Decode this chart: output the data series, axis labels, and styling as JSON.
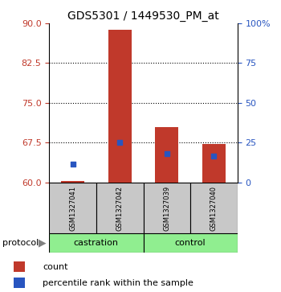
{
  "title": "GDS5301 / 1449530_PM_at",
  "samples": [
    "GSM1327041",
    "GSM1327042",
    "GSM1327039",
    "GSM1327040"
  ],
  "bar_values": [
    60.35,
    88.8,
    70.5,
    67.2
  ],
  "bar_bottom": 60,
  "percentile_values": [
    63.5,
    67.5,
    65.5,
    65.0
  ],
  "left_ylim": [
    60,
    90
  ],
  "right_ylim": [
    0,
    100
  ],
  "left_yticks": [
    60,
    67.5,
    75,
    82.5,
    90
  ],
  "right_yticks": [
    0,
    25,
    50,
    75,
    100
  ],
  "right_yticklabels": [
    "0",
    "25",
    "50",
    "75",
    "100%"
  ],
  "bar_color": "#c0392b",
  "point_color": "#2855c0",
  "protocol_groups": [
    {
      "label": "castration",
      "indices": [
        0,
        1
      ],
      "color": "#90ee90"
    },
    {
      "label": "control",
      "indices": [
        2,
        3
      ],
      "color": "#90ee90"
    }
  ],
  "protocol_label": "protocol",
  "sample_bg_color": "#c8c8c8",
  "legend_bar_label": "count",
  "legend_point_label": "percentile rank within the sample",
  "title_fontsize": 10,
  "tick_fontsize": 8
}
